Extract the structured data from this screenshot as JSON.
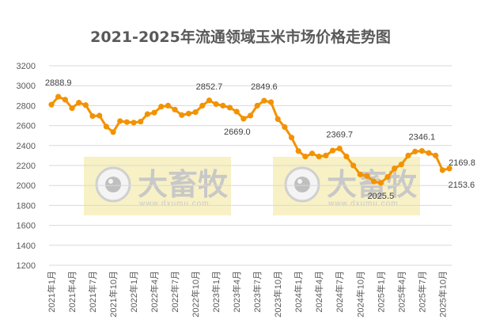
{
  "chart_data": {
    "type": "line",
    "title": "2021-2025年流通领域玉米市场价格走势图",
    "xlabel": "",
    "ylabel": "",
    "ylim": [
      1200,
      3200
    ],
    "yticks": [
      1200,
      1400,
      1600,
      1800,
      2000,
      2200,
      2400,
      2600,
      2800,
      3000,
      3200
    ],
    "grid": true,
    "legend": null,
    "x_tick_labels": [
      "2021年1月",
      "2021年4月",
      "2021年7月",
      "2021年10月",
      "2022年1月",
      "2022年4月",
      "2022年7月",
      "2022年10月",
      "2023年1月",
      "2023年4月",
      "2023年7月",
      "2023年10月",
      "2024年1月",
      "2024年4月",
      "2024年7月",
      "2024年10月",
      "2025年1月",
      "2025年4月",
      "2025年7月",
      "2025年10月"
    ],
    "series": [
      {
        "name": "流通领域玉米价格",
        "color": "#F39200",
        "x": [
          "2021-01",
          "2021-02",
          "2021-03",
          "2021-04",
          "2021-05",
          "2021-06",
          "2021-07",
          "2021-08",
          "2021-09",
          "2021-10",
          "2021-11",
          "2021-12",
          "2022-01",
          "2022-02",
          "2022-03",
          "2022-04",
          "2022-05",
          "2022-06",
          "2022-07",
          "2022-08",
          "2022-09",
          "2022-10",
          "2022-11",
          "2022-12",
          "2023-01",
          "2023-02",
          "2023-03",
          "2023-04",
          "2023-05",
          "2023-06",
          "2023-07",
          "2023-08",
          "2023-09",
          "2023-10",
          "2023-11",
          "2023-12",
          "2024-01",
          "2024-02",
          "2024-03",
          "2024-04",
          "2024-05",
          "2024-06",
          "2024-07",
          "2024-08",
          "2024-09",
          "2024-10",
          "2024-11",
          "2024-12",
          "2025-01",
          "2025-02",
          "2025-03",
          "2025-04",
          "2025-05",
          "2025-06",
          "2025-07",
          "2025-08",
          "2025-09",
          "2025-10",
          "2025-11"
        ],
        "values": [
          2810,
          2888.9,
          2860,
          2775,
          2830,
          2805,
          2695,
          2700,
          2590,
          2535,
          2645,
          2635,
          2630,
          2640,
          2715,
          2730,
          2790,
          2800,
          2760,
          2705,
          2720,
          2735,
          2800,
          2852.7,
          2815,
          2800,
          2780,
          2740,
          2669.0,
          2700,
          2800,
          2849.6,
          2835,
          2665,
          2585,
          2480,
          2345,
          2290,
          2320,
          2290,
          2300,
          2350,
          2369.7,
          2290,
          2200,
          2110,
          2095,
          2040,
          2025.5,
          2085,
          2170,
          2210,
          2300,
          2340,
          2346.1,
          2325,
          2300,
          2153.6,
          2169.8
        ]
      }
    ],
    "annotations": [
      {
        "x": "2021-02",
        "label": "2888.9"
      },
      {
        "x": "2022-12",
        "label": "2852.7"
      },
      {
        "x": "2023-05",
        "label": "2669.0"
      },
      {
        "x": "2023-08",
        "label": "2849.6"
      },
      {
        "x": "2024-07",
        "label": "2369.7"
      },
      {
        "x": "2025-01",
        "label": "2025.5"
      },
      {
        "x": "2025-07",
        "label": "2346.1"
      },
      {
        "x": "2025-10",
        "label": "2153.6"
      },
      {
        "x": "2025-11",
        "label": "2169.8"
      }
    ]
  },
  "watermark": {
    "brand": "大畜牧",
    "url": "www.dxumu.com",
    "count": 2
  }
}
